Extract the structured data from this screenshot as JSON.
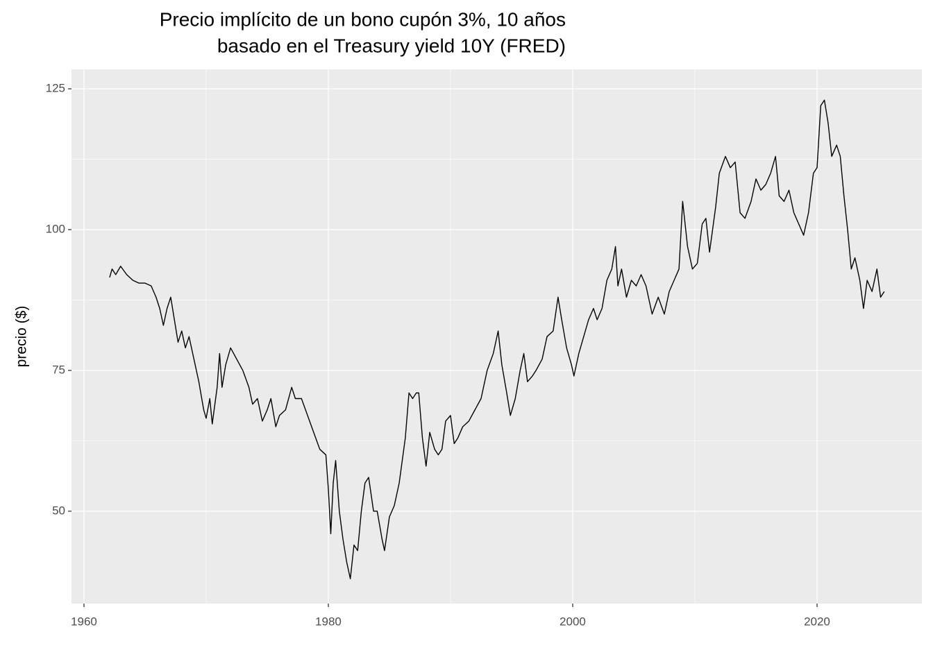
{
  "chart_data": {
    "type": "line",
    "title": [
      "Precio implícito de un bono cupón 3%, 10 años",
      "basado en el Treasury yield 10Y (FRED)"
    ],
    "y_label": "precio ($)",
    "color": "#000000",
    "x": [
      1962.1,
      1962.3,
      1962.6,
      1963.0,
      1963.5,
      1964.0,
      1964.5,
      1965.0,
      1965.5,
      1965.9,
      1966.2,
      1966.5,
      1966.8,
      1967.1,
      1967.4,
      1967.7,
      1968.0,
      1968.3,
      1968.6,
      1969.0,
      1969.4,
      1969.8,
      1970.0,
      1970.3,
      1970.5,
      1970.9,
      1971.1,
      1971.3,
      1971.6,
      1972.0,
      1972.5,
      1973.0,
      1973.5,
      1973.8,
      1974.2,
      1974.6,
      1975.0,
      1975.3,
      1975.7,
      1976.0,
      1976.5,
      1977.0,
      1977.3,
      1977.8,
      1978.3,
      1978.8,
      1979.3,
      1979.8,
      1980.0,
      1980.2,
      1980.4,
      1980.6,
      1980.9,
      1981.2,
      1981.5,
      1981.8,
      1982.1,
      1982.4,
      1982.7,
      1983.0,
      1983.3,
      1983.7,
      1984.0,
      1984.4,
      1984.6,
      1985.0,
      1985.4,
      1985.8,
      1986.3,
      1986.6,
      1986.9,
      1987.2,
      1987.4,
      1987.7,
      1988.0,
      1988.3,
      1988.7,
      1989.0,
      1989.3,
      1989.6,
      1990.0,
      1990.3,
      1990.6,
      1991.0,
      1991.5,
      1992.0,
      1992.5,
      1993.0,
      1993.5,
      1993.9,
      1994.2,
      1994.6,
      1994.9,
      1995.3,
      1995.7,
      1996.0,
      1996.3,
      1996.7,
      1997.0,
      1997.5,
      1997.9,
      1998.4,
      1998.8,
      1999.1,
      1999.5,
      1999.9,
      2000.1,
      2000.5,
      2000.9,
      2001.3,
      2001.7,
      2002.0,
      2002.4,
      2002.8,
      2003.2,
      2003.5,
      2003.7,
      2004.0,
      2004.4,
      2004.8,
      2005.2,
      2005.6,
      2006.0,
      2006.5,
      2007.0,
      2007.5,
      2007.9,
      2008.3,
      2008.7,
      2009.0,
      2009.4,
      2009.8,
      2010.2,
      2010.6,
      2010.9,
      2011.2,
      2011.7,
      2012.0,
      2012.5,
      2012.9,
      2013.3,
      2013.7,
      2014.1,
      2014.6,
      2015.0,
      2015.4,
      2015.8,
      2016.2,
      2016.6,
      2016.9,
      2017.3,
      2017.7,
      2018.1,
      2018.5,
      2018.9,
      2019.3,
      2019.7,
      2020.0,
      2020.3,
      2020.6,
      2020.9,
      2021.2,
      2021.6,
      2021.9,
      2022.2,
      2022.5,
      2022.8,
      2023.1,
      2023.5,
      2023.8,
      2024.1,
      2024.5,
      2024.9,
      2025.2,
      2025.5
    ],
    "values": [
      91.5,
      93,
      92,
      93.5,
      92,
      91,
      90.5,
      90.5,
      90,
      88,
      86,
      83,
      86,
      88,
      84,
      80,
      82,
      79,
      81,
      77,
      73,
      68,
      66.5,
      70,
      65.5,
      72,
      78,
      72,
      76,
      79,
      77,
      75,
      72,
      69,
      70,
      66,
      68,
      70,
      65,
      67,
      68,
      72,
      70,
      70,
      67,
      64,
      61,
      60,
      54,
      46,
      55,
      59,
      50,
      45,
      41,
      38,
      44,
      43,
      50,
      55,
      56,
      50,
      50,
      45,
      43,
      49,
      51,
      55,
      63,
      71,
      70,
      71,
      71,
      63,
      58,
      64,
      61,
      60,
      61,
      66,
      67,
      62,
      63,
      65,
      66,
      68,
      70,
      75,
      78,
      82,
      76,
      71,
      67,
      70,
      75,
      78,
      73,
      74,
      75,
      77,
      81,
      82,
      88,
      84,
      79,
      76,
      74,
      78,
      81,
      84,
      86,
      84,
      86,
      91,
      93,
      97,
      90,
      93,
      88,
      91,
      90,
      92,
      90,
      85,
      88,
      85,
      89,
      91,
      93,
      105,
      97,
      93,
      94,
      101,
      102,
      96,
      104,
      110,
      113,
      111,
      112,
      103,
      102,
      105,
      109,
      107,
      108,
      110,
      113,
      106,
      105,
      107,
      103,
      101,
      99,
      103,
      110,
      111,
      122,
      123,
      119,
      113,
      115,
      113,
      106,
      100,
      93,
      95,
      91,
      86,
      91,
      89,
      93,
      88,
      89
    ],
    "xlim": [
      1958.98,
      2028.58
    ],
    "xticks": [
      1960,
      1980,
      2000,
      2020
    ],
    "x_minor": [
      1970,
      1990,
      2010
    ],
    "ylim": [
      33.6,
      128.45
    ],
    "yticks": [
      50,
      75,
      100,
      125
    ],
    "y_minor": [
      62.5,
      87.5,
      112.5
    ],
    "grid": true
  }
}
